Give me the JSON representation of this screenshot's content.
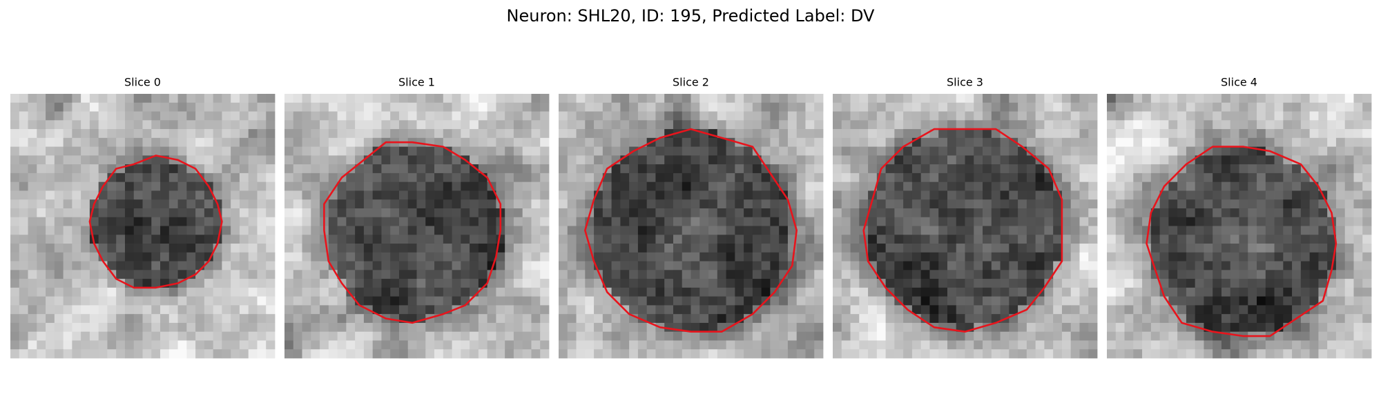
{
  "title": "Neuron: SHL20, ID: 195, Predicted Label: DV",
  "panels": [
    {
      "title": "Slice 0"
    },
    {
      "title": "Slice 1"
    },
    {
      "title": "Slice 2"
    },
    {
      "title": "Slice 3"
    },
    {
      "title": "Slice 4"
    }
  ]
}
